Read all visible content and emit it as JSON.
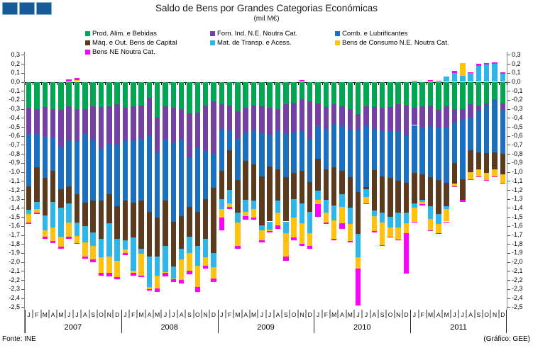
{
  "title": "Saldo de Bens por Grandes Categorias Económicas",
  "subtitle": "(mil M€)",
  "footer": {
    "left": "Fonte: INE",
    "right": "(Gráfico: GEE)"
  },
  "logo": {
    "square_count": 3,
    "fill": "#165A96",
    "border": "#7FAFD0"
  },
  "legend_items": [
    {
      "label": "Prod. Alim. e Bebidas",
      "color": "#00A651",
      "col": 0,
      "row": 0
    },
    {
      "label": "Forn. Ind. N.E. Noutra Cat.",
      "color": "#7440A4",
      "col": 1,
      "row": 0
    },
    {
      "label": "Comb. e Lubrificantes",
      "color": "#1A6FBF",
      "col": 2,
      "row": 0
    },
    {
      "label": "Máq. e Out. Bens de Capital",
      "color": "#5C3A1E",
      "col": 0,
      "row": 1
    },
    {
      "label": "Mat. de Transp. e Acess.",
      "color": "#2EB6EA",
      "col": 1,
      "row": 1
    },
    {
      "label": "Bens de Consumo N.E. Noutra Cat.",
      "color": "#FFC20E",
      "col": 2,
      "row": 1
    },
    {
      "label": "Bens NE Noutra Cat.",
      "color": "#FF00FF",
      "col": 0,
      "row": 2
    }
  ],
  "chart_data": {
    "type": "bar",
    "stacked": true,
    "title": "Saldo de Bens por Grandes Categorias Económicas",
    "ylabel": "mil M€",
    "ylim": [
      -2.5,
      0.3
    ],
    "ytick_step": 0.1,
    "ytick_labels": [
      "0,3",
      "0,2",
      "0,1",
      "0,0",
      "-0,1",
      "-0,2",
      "-0,3",
      "-0,4",
      "-0,5",
      "-0,6",
      "-0,7",
      "-0,8",
      "-0,9",
      "-1,0",
      "-1,1",
      "-1,2",
      "-1,3",
      "-1,4",
      "-1,5",
      "-1,6",
      "-1,7",
      "-1,8",
      "-1,9",
      "-2,0",
      "-2,1",
      "-2,2",
      "-2,3",
      "-2,4",
      "-2,5"
    ],
    "grid": false,
    "legend_position": "top",
    "years": [
      "2007",
      "2008",
      "2009",
      "2010",
      "2011"
    ],
    "month_letters": [
      "J",
      "F",
      "M",
      "A",
      "M",
      "J",
      "J",
      "A",
      "S",
      "O",
      "N",
      "D"
    ],
    "series": [
      {
        "name": "Prod. Alim. e Bebidas",
        "color": "#00A651",
        "values": [
          -0.29,
          -0.3,
          -0.28,
          -0.3,
          -0.31,
          -0.27,
          -0.3,
          -0.3,
          -0.27,
          -0.28,
          -0.27,
          -0.25,
          -0.29,
          -0.27,
          -0.26,
          -0.18,
          -0.4,
          -0.27,
          -0.29,
          -0.3,
          -0.35,
          -0.34,
          -0.26,
          -0.22,
          -0.25,
          -0.26,
          -0.33,
          -0.29,
          -0.26,
          -0.27,
          -0.29,
          -0.3,
          -0.25,
          -0.23,
          -0.19,
          -0.22,
          -0.24,
          -0.28,
          -0.25,
          -0.27,
          -0.3,
          -0.36,
          -0.27,
          -0.28,
          -0.29,
          -0.28,
          -0.25,
          -0.26,
          -0.29,
          -0.27,
          -0.26,
          -0.31,
          -0.27,
          -0.3,
          -0.3,
          -0.25,
          -0.26,
          -0.24,
          -0.19,
          -0.24
        ],
        "pos": {}
      },
      {
        "name": "Forn. Ind. N.E. Noutra Cat.",
        "color": "#7440A4",
        "values": [
          -0.29,
          -0.28,
          -0.33,
          -0.32,
          -0.41,
          -0.38,
          -0.36,
          -0.28,
          -0.37,
          -0.46,
          -0.42,
          -0.45,
          -0.36,
          -0.38,
          -0.37,
          -0.42,
          -0.38,
          -0.37,
          -0.38,
          -0.34,
          -0.49,
          -0.39,
          -0.51,
          -0.58,
          -0.27,
          -0.28,
          -0.3,
          -0.27,
          -0.28,
          -0.3,
          -0.3,
          -0.25,
          -0.32,
          -0.33,
          -0.36,
          -0.41,
          -0.25,
          -0.24,
          -0.22,
          -0.22,
          -0.23,
          -0.17,
          -0.21,
          -0.24,
          -0.26,
          -0.27,
          -0.3,
          -0.34,
          -0.19,
          -0.24,
          -0.23,
          -0.2,
          -0.24,
          -0.15,
          -0.12,
          -0.15,
          -0.06,
          -0.02,
          -0.01,
          -0.07
        ],
        "pos": {}
      },
      {
        "name": "Comb. e Lubrificantes",
        "color": "#1A6FBF",
        "values": [
          -0.58,
          -0.37,
          -0.46,
          -0.37,
          -0.47,
          -0.51,
          -0.59,
          -0.76,
          -0.68,
          -0.58,
          -0.56,
          -0.68,
          -0.67,
          -0.69,
          -0.69,
          -0.84,
          -0.73,
          -0.68,
          -0.88,
          -0.85,
          -0.55,
          -0.71,
          -0.53,
          -0.38,
          -0.47,
          -0.22,
          -0.46,
          -0.32,
          -0.38,
          -0.48,
          -0.35,
          -0.42,
          -0.49,
          -0.45,
          -0.44,
          -0.48,
          -0.36,
          -0.45,
          -0.48,
          -0.5,
          -0.53,
          -0.69,
          -0.69,
          -0.46,
          -0.5,
          -0.52,
          -0.55,
          -0.52,
          -0.53,
          -0.52,
          -0.57,
          -0.58,
          -0.61,
          -0.45,
          -0.66,
          -0.36,
          -0.46,
          -0.53,
          -0.58,
          -0.49
        ],
        "pos": {}
      },
      {
        "name": "Máq. e Out. Bens de Capital",
        "color": "#5C3A1E",
        "values": [
          -0.26,
          -0.38,
          -0.41,
          -0.34,
          -0.21,
          -0.19,
          -0.31,
          -0.26,
          -0.35,
          -0.42,
          -0.32,
          -0.36,
          -0.44,
          -0.39,
          -0.53,
          -0.5,
          -0.43,
          -0.5,
          -0.5,
          -0.36,
          -0.33,
          -0.38,
          -0.44,
          -0.72,
          -0.31,
          -0.44,
          -0.36,
          -0.43,
          -0.4,
          -0.54,
          -0.61,
          -0.35,
          -0.49,
          -0.29,
          -0.36,
          -0.33,
          -0.36,
          -0.34,
          -0.42,
          -0.26,
          -0.34,
          -0.47,
          -0.02,
          -0.45,
          -0.4,
          -0.43,
          -0.35,
          -0.33,
          -0.34,
          -0.28,
          -0.32,
          -0.38,
          -0.26,
          -0.23,
          -0.23,
          -0.24,
          -0.19,
          -0.22,
          -0.19,
          -0.23
        ],
        "pos": {}
      },
      {
        "name": "Mat. de Transp. e Acess.",
        "color": "#2EB6EA",
        "values": [
          -0.05,
          -0.08,
          -0.17,
          -0.29,
          -0.32,
          -0.21,
          -0.15,
          -0.18,
          -0.15,
          -0.21,
          -0.37,
          -0.25,
          -0.1,
          -0.37,
          -0.06,
          -0.34,
          -0.21,
          -0.29,
          -0.13,
          -0.12,
          -0.18,
          -0.22,
          -0.21,
          -0.16,
          -0.11,
          -0.15,
          -0.11,
          -0.13,
          -0.09,
          -0.06,
          -0.09,
          -0.13,
          -0.13,
          -0.21,
          -0.22,
          -0.24,
          -0.1,
          -0.14,
          -0.17,
          -0.14,
          -0.18,
          -0.26,
          -0.09,
          -0.06,
          -0.11,
          -0.12,
          -0.17,
          -0.12,
          -0.05,
          -0.02,
          -0.14,
          -0.11,
          -0.03,
          0,
          0,
          0,
          0,
          0,
          0,
          0
        ],
        "pos": {
          "52": 0.06,
          "53": 0.1,
          "54": 0.07,
          "55": 0.1,
          "56": 0.18,
          "57": 0.19,
          "58": 0.2,
          "59": 0.09
        }
      },
      {
        "name": "Bens de Consumo N.E. Noutra Cat.",
        "color": "#FFC20E",
        "values": [
          -0.09,
          -0.04,
          -0.07,
          -0.15,
          -0.11,
          -0.16,
          -0.08,
          -0.16,
          -0.15,
          -0.17,
          -0.18,
          -0.18,
          -0.04,
          -0.02,
          -0.24,
          -0.02,
          -0.14,
          -0.01,
          -0.01,
          -0.23,
          -0.2,
          -0.24,
          -0.09,
          -0.12,
          -0.1,
          -0.04,
          -0.26,
          -0.05,
          -0.1,
          -0.11,
          -0.02,
          -0.14,
          -0.26,
          -0.22,
          -0.23,
          -0.14,
          -0.05,
          -0.11,
          -0.2,
          -0.18,
          -0.19,
          -0.12,
          -0.07,
          -0.17,
          -0.25,
          -0.1,
          -0.13,
          -0.11,
          -0.15,
          -0.03,
          -0.13,
          -0.1,
          -0.14,
          -0.03,
          0,
          -0.08,
          -0.08,
          -0.08,
          -0.08,
          -0.09
        ],
        "pos": {
          "6": 0.02,
          "54": 0.14
        }
      },
      {
        "name": "Bens NE Noutra Cat.",
        "color": "#FF00FF",
        "values": [
          -0.02,
          -0.02,
          -0.02,
          -0.02,
          -0.02,
          -0.02,
          -0.01,
          -0.02,
          -0.03,
          -0.03,
          -0.04,
          -0.02,
          -0.02,
          -0.03,
          -0.02,
          -0.02,
          -0.04,
          -0.04,
          -0.03,
          -0.04,
          -0.04,
          -0.05,
          -0.03,
          -0.04,
          -0.14,
          -0.02,
          -0.03,
          -0.04,
          -0.02,
          -0.02,
          -0.01,
          -0.04,
          -0.05,
          -0.03,
          -0.02,
          -0.03,
          -0.14,
          -0.02,
          -0.02,
          -0.06,
          -0.01,
          -0.41,
          -0.01,
          -0.01,
          -0.01,
          -0.01,
          -0.01,
          -0.45,
          -0.01,
          -0.01,
          -0.01,
          -0.01,
          -0.01,
          -0.01,
          -0.02,
          -0.01,
          -0.01,
          -0.01,
          -0.01,
          -0.01
        ],
        "pos": {
          "5": 0.03,
          "6": 0.02,
          "34": 0.02,
          "48": 0.01,
          "50": 0.02,
          "51": 0.01,
          "53": 0.02,
          "55": 0.01,
          "56": 0.02,
          "57": 0.02,
          "58": 0.02,
          "59": 0.02
        }
      }
    ]
  }
}
